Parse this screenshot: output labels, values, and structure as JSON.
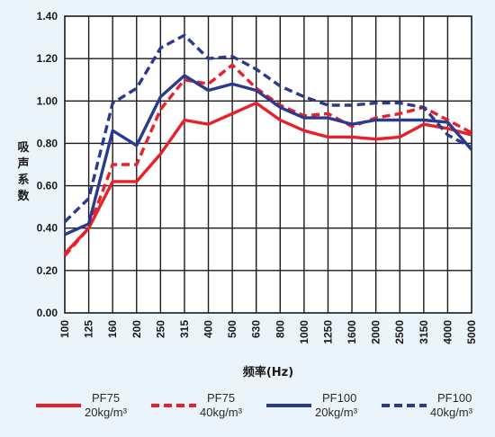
{
  "chart_data": {
    "type": "line",
    "title": "",
    "xlabel": "频率(Hz)",
    "ylabel": "吸声系数",
    "ylim": [
      0,
      1.4
    ],
    "yticks": [
      "0.00",
      "0.20",
      "0.40",
      "0.60",
      "0.80",
      "1.00",
      "1.20",
      "1.40"
    ],
    "categories": [
      "100",
      "125",
      "160",
      "200",
      "250",
      "315",
      "400",
      "500",
      "630",
      "800",
      "1000",
      "1250",
      "1600",
      "2000",
      "2500",
      "3150",
      "4000",
      "5000"
    ],
    "grid": true,
    "legend_position": "bottom",
    "series": [
      {
        "name": "PF75",
        "density": "20kg/m³",
        "color": "#e8202a",
        "dash": "solid",
        "values": [
          0.28,
          0.4,
          0.62,
          0.62,
          0.75,
          0.91,
          0.89,
          0.94,
          0.99,
          0.91,
          0.86,
          0.83,
          0.83,
          0.82,
          0.83,
          0.89,
          0.87,
          0.84
        ]
      },
      {
        "name": "PF75",
        "density": "40kg/m³",
        "color": "#e8202a",
        "dash": "dashed",
        "values": [
          0.27,
          0.4,
          0.7,
          0.7,
          0.96,
          1.1,
          1.08,
          1.17,
          1.06,
          0.98,
          0.93,
          0.94,
          0.88,
          0.92,
          0.94,
          0.97,
          0.91,
          0.85
        ]
      },
      {
        "name": "PF100",
        "density": "20kg/m³",
        "color": "#2b3a8f",
        "dash": "solid",
        "values": [
          0.37,
          0.42,
          0.86,
          0.79,
          1.02,
          1.12,
          1.05,
          1.08,
          1.05,
          0.97,
          0.92,
          0.92,
          0.89,
          0.91,
          0.91,
          0.91,
          0.9,
          0.77
        ]
      },
      {
        "name": "PF100",
        "density": "40kg/m³",
        "color": "#2b3a8f",
        "dash": "dashed",
        "values": [
          0.43,
          0.54,
          0.99,
          1.06,
          1.25,
          1.31,
          1.2,
          1.21,
          1.15,
          1.07,
          1.02,
          0.98,
          0.98,
          0.99,
          0.99,
          0.97,
          0.84,
          0.78
        ]
      }
    ]
  }
}
